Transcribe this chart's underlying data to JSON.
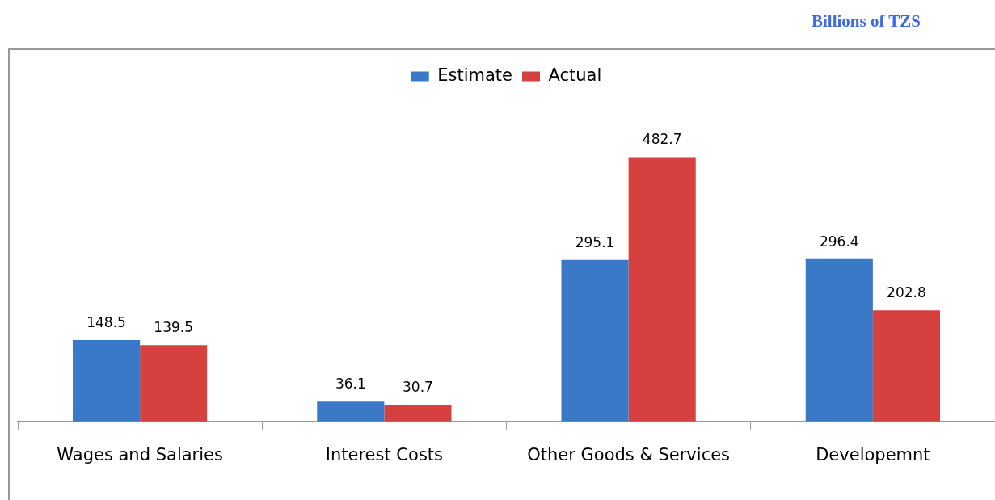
{
  "chart_data": {
    "type": "bar",
    "annotations": [
      "Billions of TZS"
    ],
    "categories": [
      "Wages and Salaries",
      "Interest Costs",
      "Other Goods & Services",
      "Developemnt"
    ],
    "series": [
      {
        "name": "Estimate",
        "color": "#3a78c8",
        "values": [
          148.5,
          36.1,
          295.1,
          296.4
        ]
      },
      {
        "name": "Actual",
        "color": "#d6403e",
        "values": [
          139.5,
          30.7,
          482.7,
          202.8
        ]
      }
    ],
    "data_labels": true,
    "legend": "top",
    "grid": false
  }
}
